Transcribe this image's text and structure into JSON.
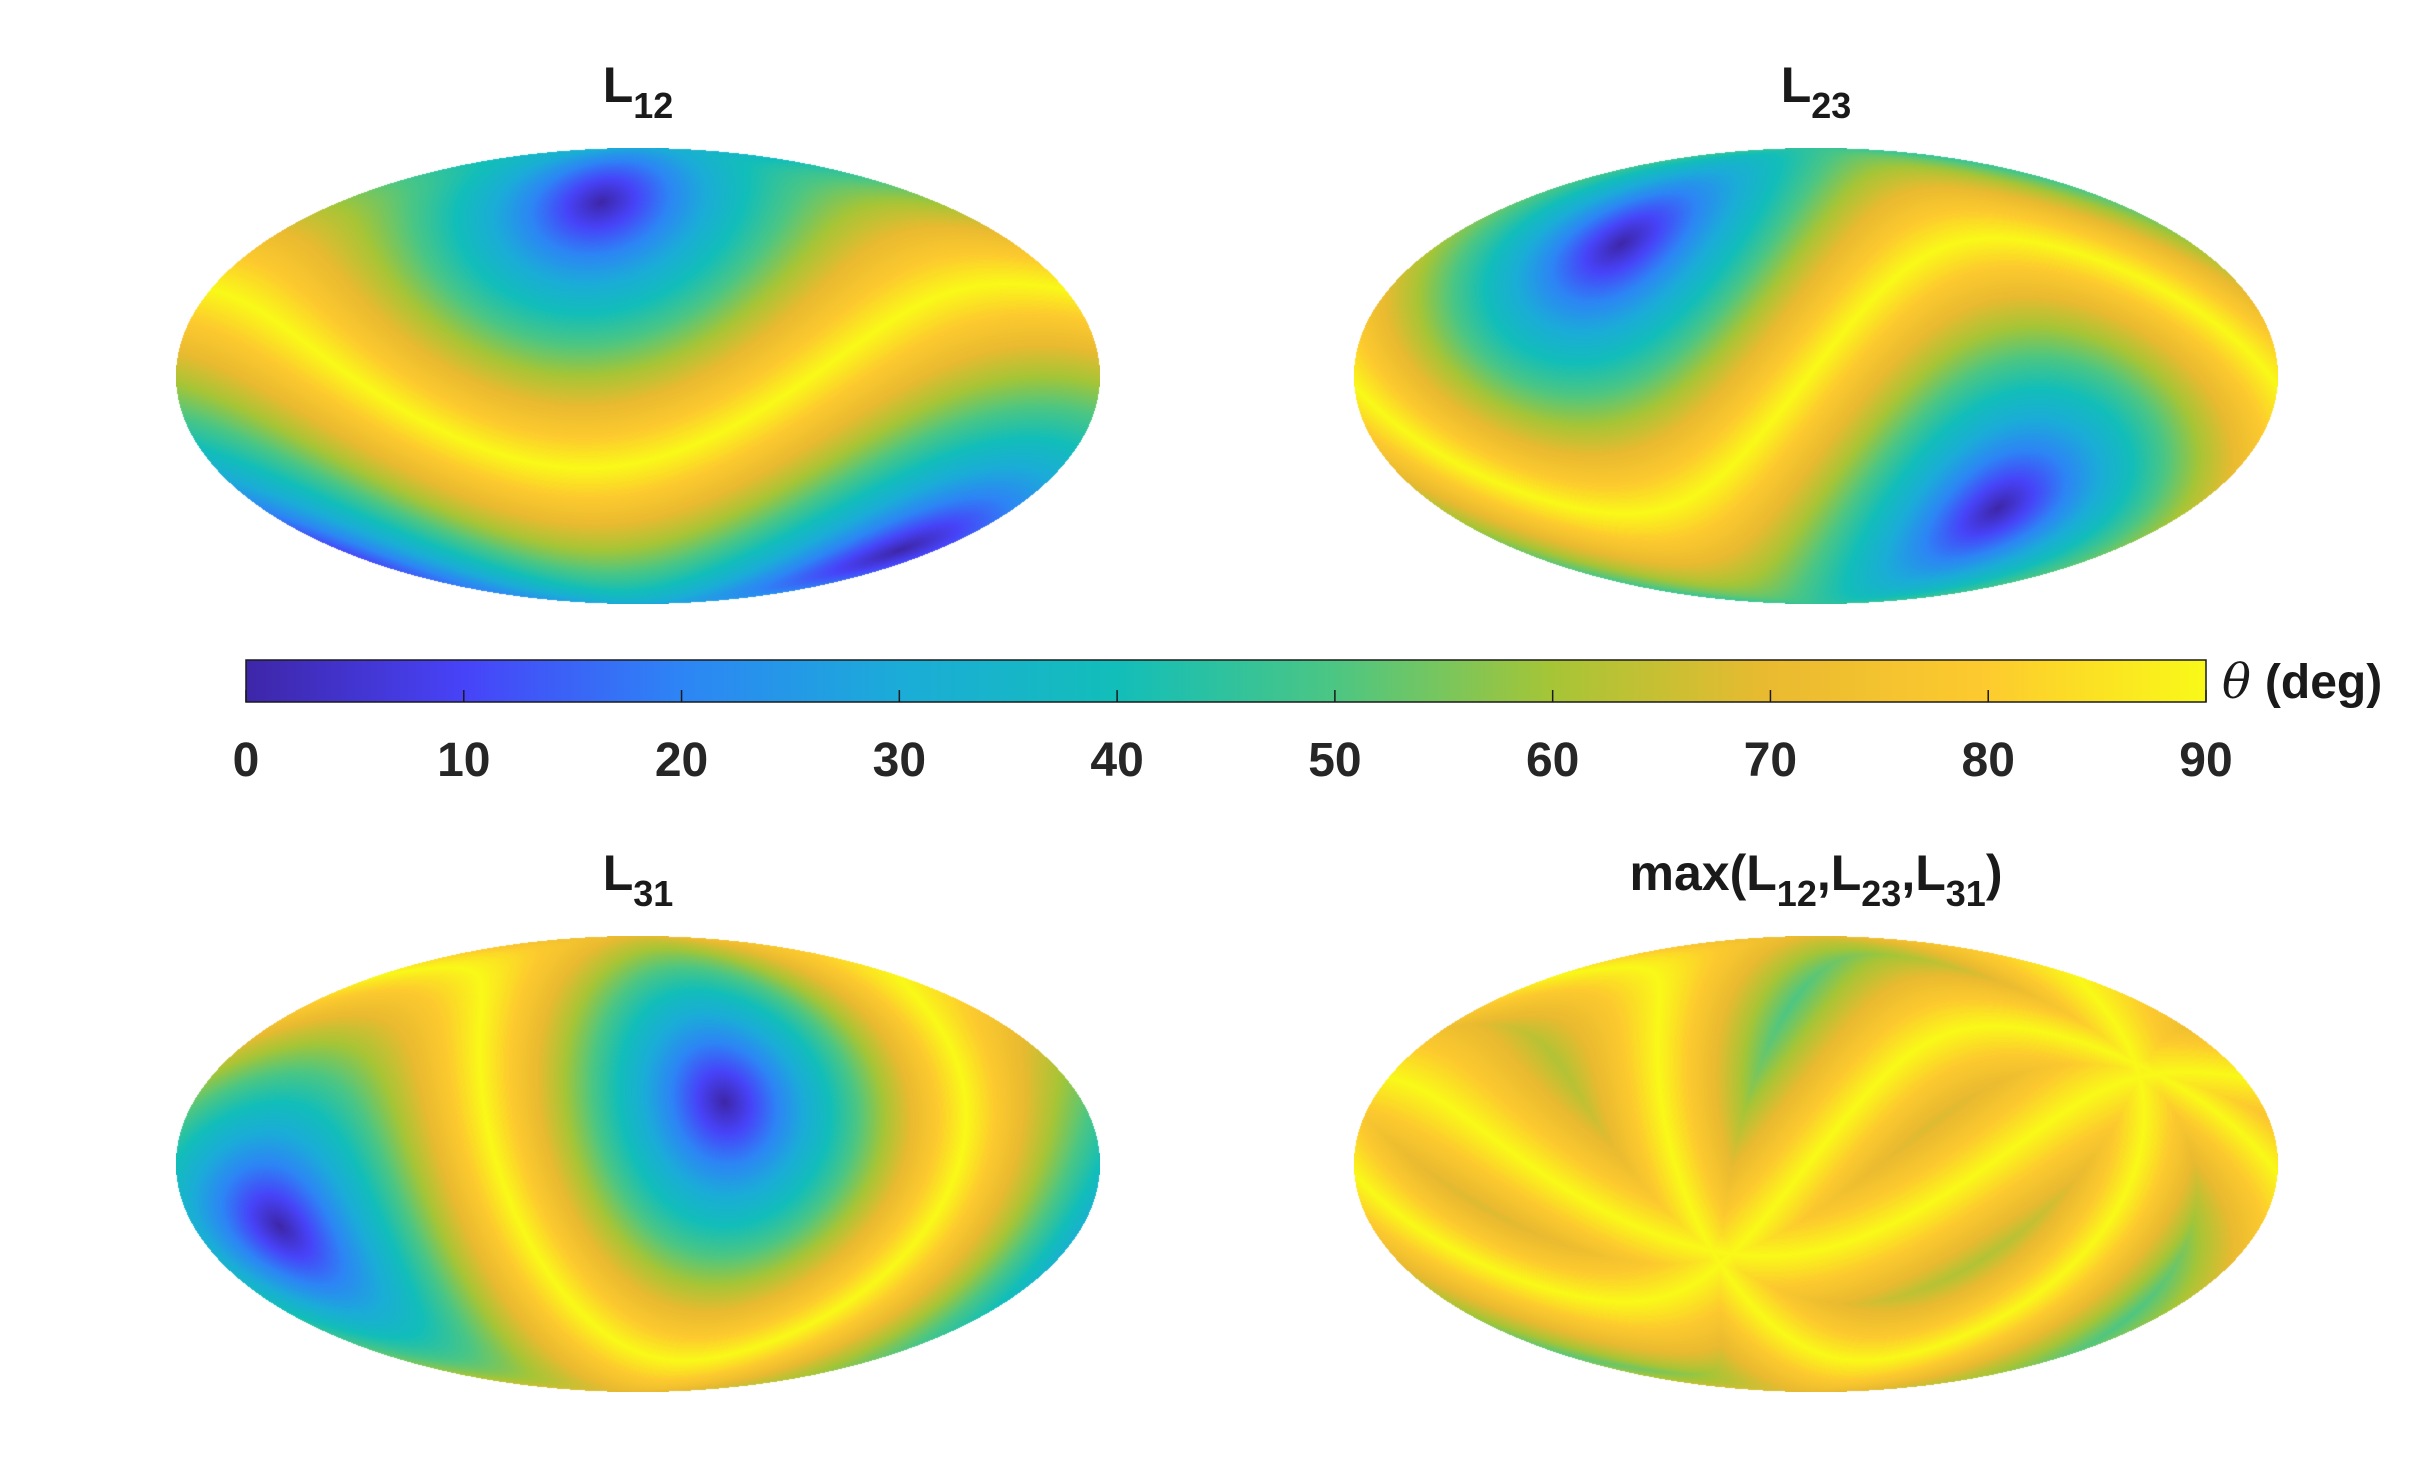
{
  "chart_data": [
    {
      "type": "heatmap",
      "projection": "mollweide",
      "title": {
        "base": "L",
        "sub": "12",
        "full": "L12"
      },
      "quantity": "theta",
      "colormap": "parula",
      "clim": [
        0,
        90
      ],
      "minima": [
        {
          "lon_deg": -22,
          "lat_deg": 60,
          "value": 0
        },
        {
          "lon_deg": 158,
          "lat_deg": -60,
          "value": 0
        }
      ]
    },
    {
      "type": "heatmap",
      "projection": "mollweide",
      "title": {
        "base": "L",
        "sub": "23",
        "full": "L23"
      },
      "quantity": "theta",
      "colormap": "parula",
      "clim": [
        0,
        90
      ],
      "minima": [
        {
          "lon_deg": -93,
          "lat_deg": 44,
          "value": 0
        },
        {
          "lon_deg": 87,
          "lat_deg": -44,
          "value": 0
        }
      ]
    },
    {
      "type": "heatmap",
      "projection": "mollweide",
      "title": {
        "base": "L",
        "sub": "31",
        "full": "L31"
      },
      "quantity": "theta",
      "colormap": "parula",
      "clim": [
        0,
        90
      ],
      "minima": [
        {
          "lon_deg": -145,
          "lat_deg": -20,
          "value": 0
        },
        {
          "lon_deg": 35,
          "lat_deg": 20,
          "value": 0
        }
      ]
    },
    {
      "type": "heatmap",
      "projection": "mollweide",
      "title": {
        "full": "max(L12,L23,L31)",
        "segments": [
          {
            "t": "max(L"
          },
          {
            "t": "12",
            "sub": true
          },
          {
            "t": ",L"
          },
          {
            "t": "23",
            "sub": true
          },
          {
            "t": ",L"
          },
          {
            "t": "31",
            "sub": true
          },
          {
            "t": ")"
          }
        ]
      },
      "quantity": "theta",
      "colormap": "parula",
      "clim": [
        0,
        90
      ],
      "combine": "max of panels 1-3"
    }
  ],
  "colorbar": {
    "label_symbol": "θ",
    "label_unit": "(deg)",
    "ticks": [
      "0",
      "10",
      "20",
      "30",
      "40",
      "50",
      "60",
      "70",
      "80",
      "90"
    ],
    "range": [
      0,
      90
    ],
    "colormap": "parula",
    "orientation": "horizontal",
    "colormap_stops": [
      "#3e26a8",
      "#4743f8",
      "#2d85f5",
      "#1bacd8",
      "#12beb9",
      "#4cc683",
      "#a6c536",
      "#eaba30",
      "#fdcb2e",
      "#f9f918"
    ]
  }
}
